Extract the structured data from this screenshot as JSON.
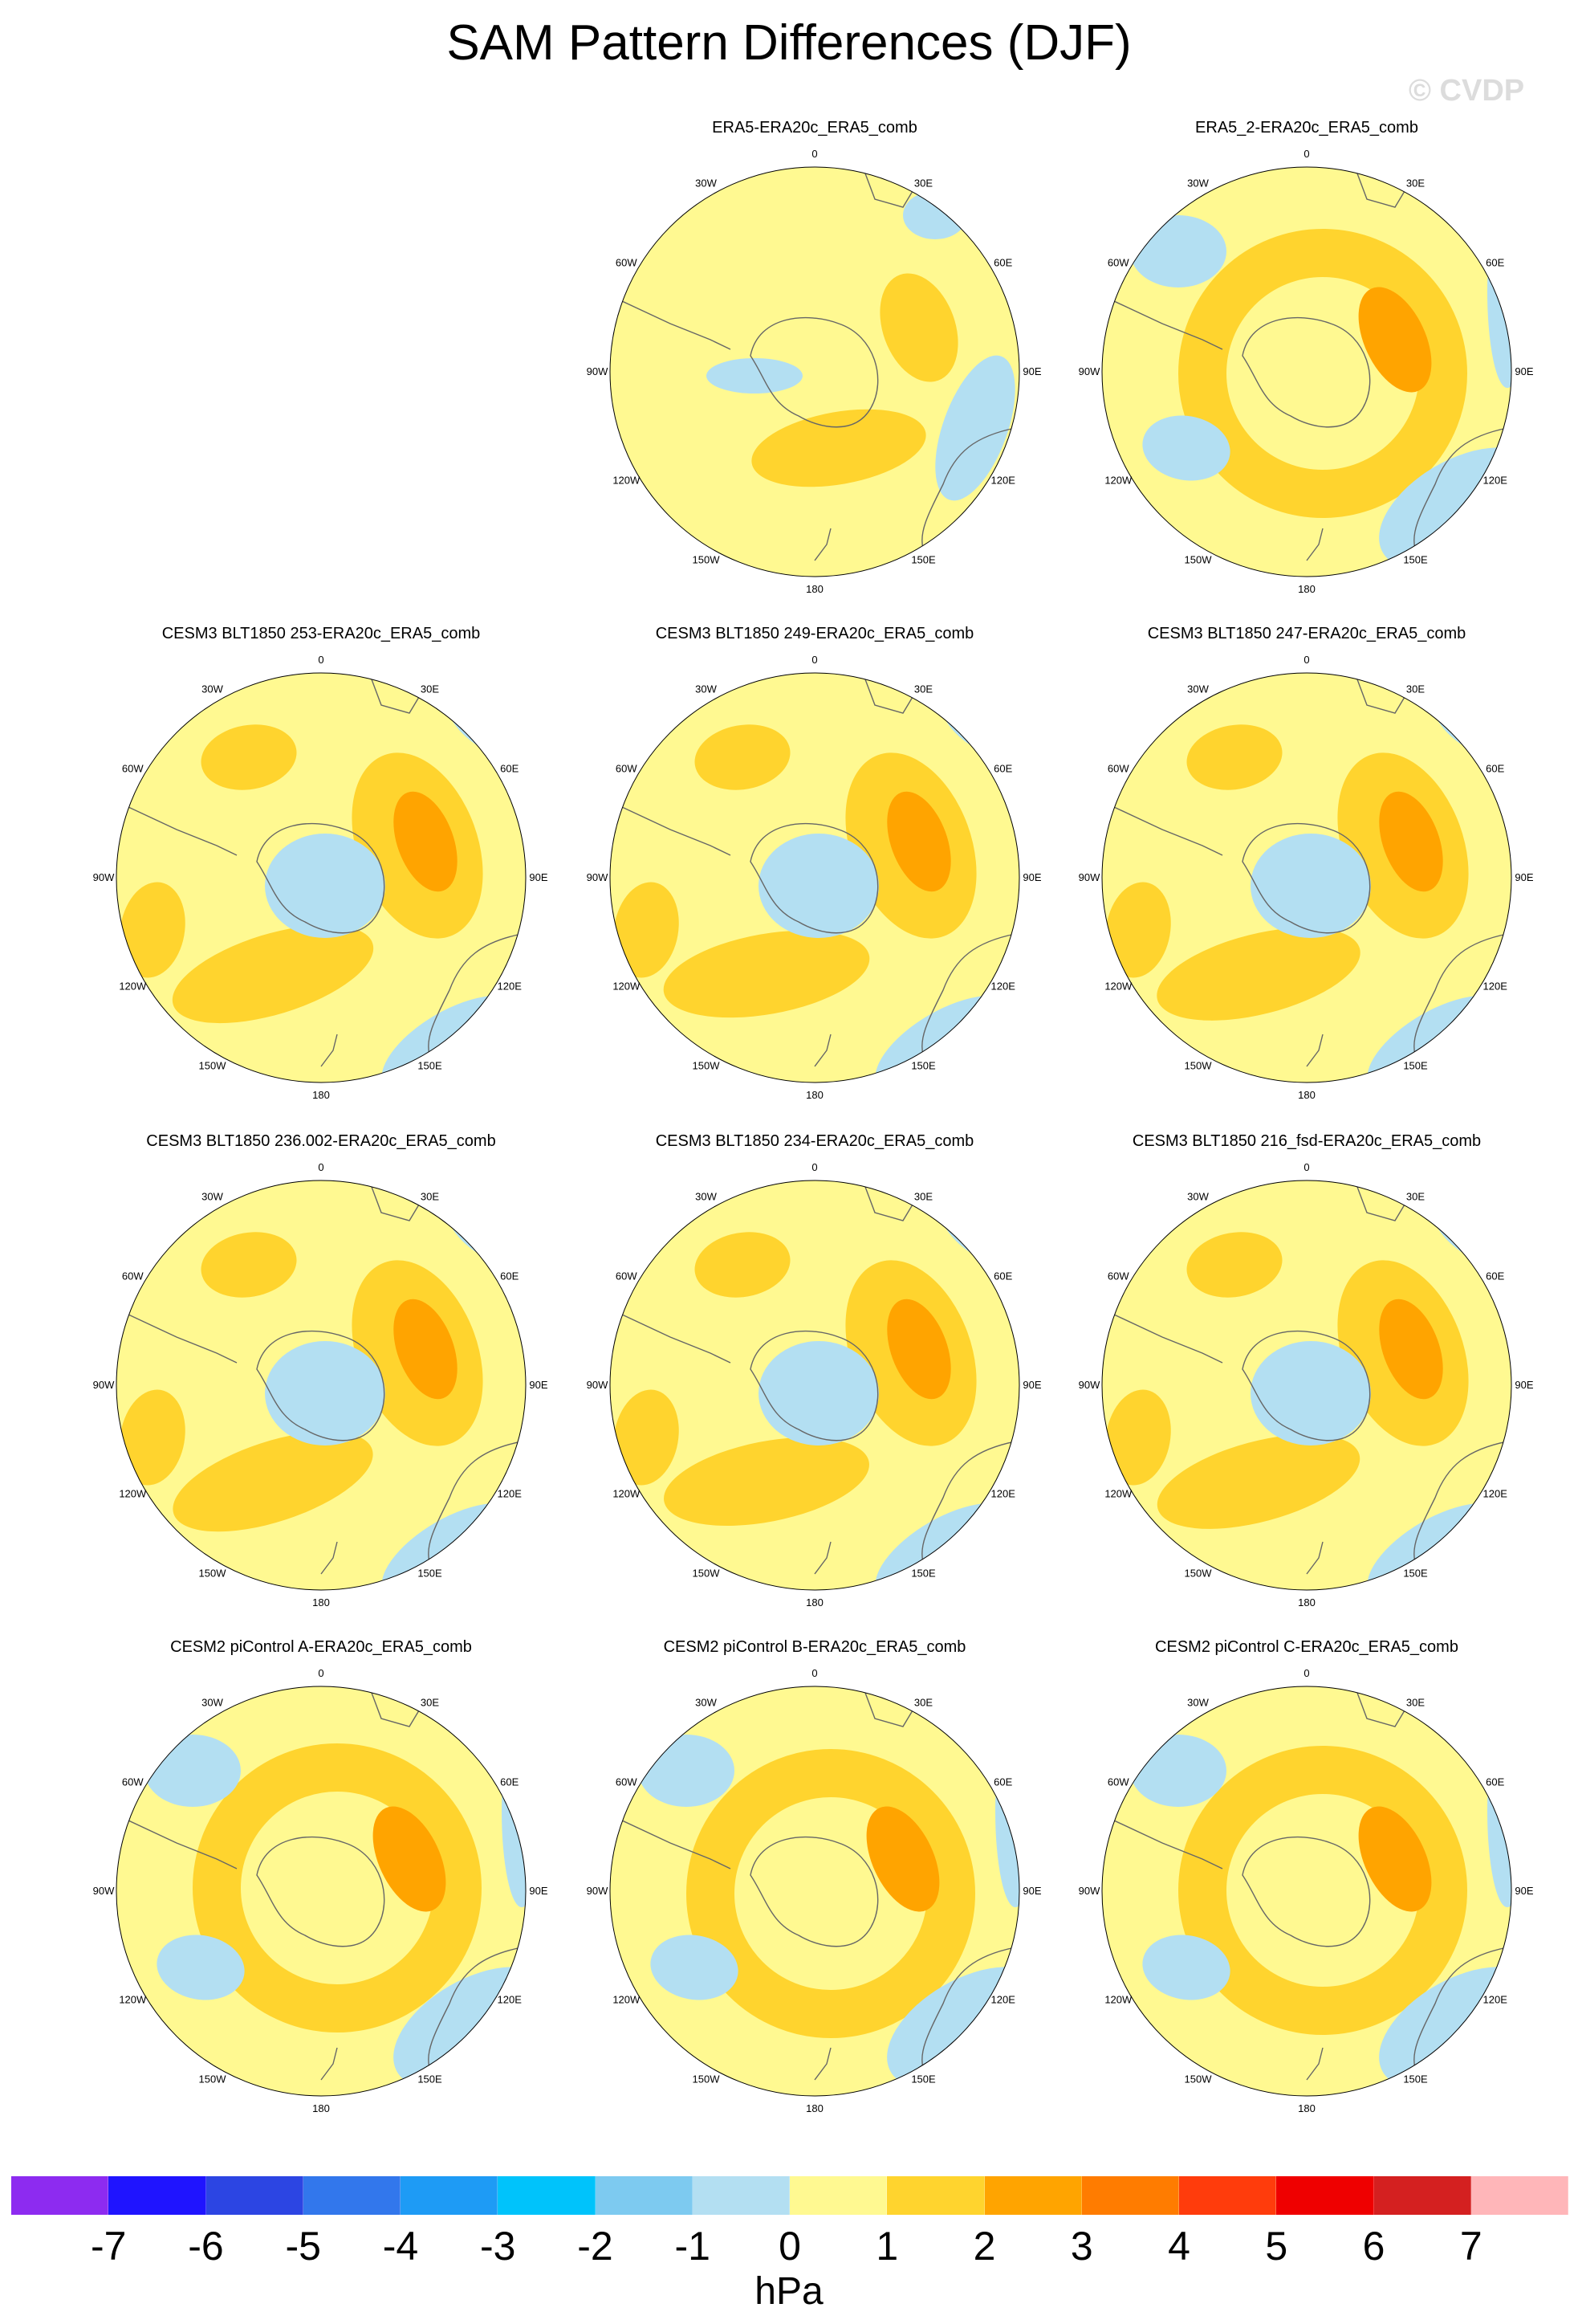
{
  "title": "SAM Pattern Differences (DJF)",
  "watermark": "© CVDP",
  "longitude_labels": [
    "0",
    "30E",
    "60E",
    "90E",
    "120E",
    "150E",
    "180",
    "150W",
    "120W",
    "90W",
    "60W",
    "30W"
  ],
  "panels": [
    {
      "title": "ERA5-ERA20c_ERA5_comb",
      "pattern": "weak"
    },
    {
      "title": "ERA5_2-ERA20c_ERA5_comb",
      "pattern": "ring"
    },
    {
      "title": "CESM3 BLT1850 253-ERA20c_ERA5_comb",
      "pattern": "model"
    },
    {
      "title": "CESM3 BLT1850 249-ERA20c_ERA5_comb",
      "pattern": "model"
    },
    {
      "title": "CESM3 BLT1850 247-ERA20c_ERA5_comb",
      "pattern": "model"
    },
    {
      "title": "CESM3 BLT1850 236.002-ERA20c_ERA5_comb",
      "pattern": "model"
    },
    {
      "title": "CESM3 BLT1850 234-ERA20c_ERA5_comb",
      "pattern": "model"
    },
    {
      "title": "CESM3 BLT1850 216_fsd-ERA20c_ERA5_comb",
      "pattern": "model"
    },
    {
      "title": "CESM2 piControl A-ERA20c_ERA5_comb",
      "pattern": "ring"
    },
    {
      "title": "CESM2 piControl B-ERA20c_ERA5_comb",
      "pattern": "ring"
    },
    {
      "title": "CESM2 piControl C-ERA20c_ERA5_comb",
      "pattern": "ring"
    }
  ],
  "colorbar": {
    "units": "hPa",
    "labels": [
      "-7",
      "-6",
      "-5",
      "-4",
      "-3",
      "-2",
      "-1",
      "0",
      "1",
      "2",
      "3",
      "4",
      "5",
      "6",
      "7"
    ],
    "colors": [
      "#8d2bf0",
      "#1f14ff",
      "#2c45e3",
      "#3277ec",
      "#1e9bf5",
      "#00c3fb",
      "#7dcaf0",
      "#b3dff2",
      "#fff991",
      "#ffd42e",
      "#ffa400",
      "#ff7c00",
      "#ff3c0c",
      "#ef0000",
      "#d42020",
      "#ffb6b9"
    ]
  },
  "fill_colors": {
    "pos1": "#fff991",
    "pos2": "#ffd42e",
    "pos3": "#ffa400",
    "neg1": "#b3dff2",
    "neg2": "#7dcaf0",
    "coast": "#666666"
  }
}
